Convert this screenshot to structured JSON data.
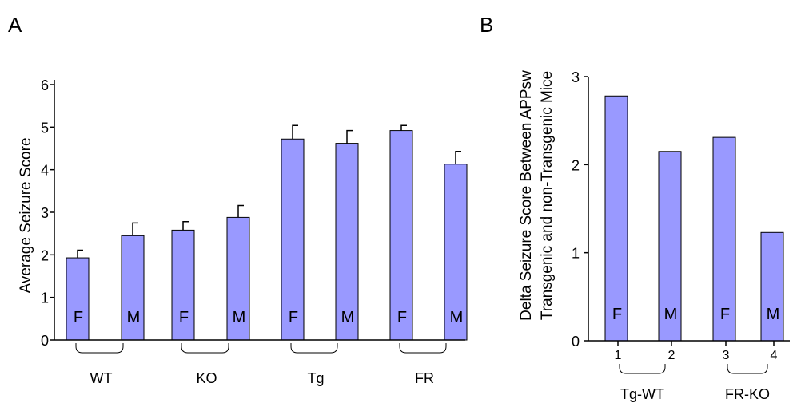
{
  "colors": {
    "bar_fill": "#9999ff",
    "bar_stroke": "#000000",
    "axis": "#000000"
  },
  "chart_data": [
    {
      "type": "bar",
      "panel_label": "A",
      "ylabel": "Average Seizure Score",
      "ylim": [
        0,
        6
      ],
      "yticks": [
        "0",
        "1",
        "2",
        "3",
        "4",
        "5",
        "6"
      ],
      "bar_labels": [
        "F",
        "M",
        "F",
        "M",
        "F",
        "M",
        "F",
        "M"
      ],
      "values": [
        1.93,
        2.45,
        2.58,
        2.88,
        4.72,
        4.62,
        4.92,
        4.13
      ],
      "errors": [
        0.18,
        0.3,
        0.2,
        0.28,
        0.32,
        0.3,
        0.12,
        0.3
      ],
      "groups": [
        "WT",
        "KO",
        "Tg",
        "FR"
      ]
    },
    {
      "type": "bar",
      "panel_label": "B",
      "ylabel_lines": [
        "Delta Seizure Score Between APPsw",
        "Transgenic and non-Transgenic Mice"
      ],
      "ylim": [
        0,
        3
      ],
      "yticks": [
        "0",
        "1",
        "2",
        "3"
      ],
      "categories": [
        "1",
        "2",
        "3",
        "4"
      ],
      "bar_labels": [
        "F",
        "M",
        "F",
        "M"
      ],
      "values": [
        2.78,
        2.15,
        2.31,
        1.23
      ],
      "groups": [
        "Tg-WT",
        "FR-KO"
      ]
    }
  ]
}
